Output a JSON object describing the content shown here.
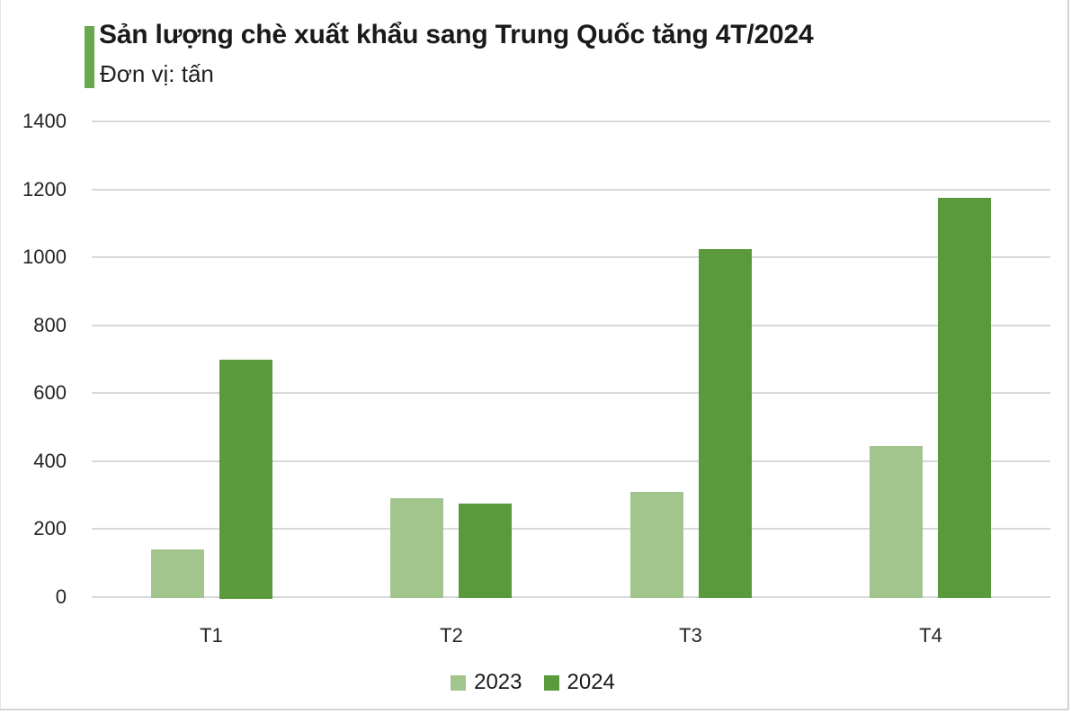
{
  "colors": {
    "accent_bar": "#6aa84f",
    "grid": "#d9d9d9",
    "frame_border": "#d4d4d4",
    "title_text": "#1a1a1a",
    "axis_text": "#262626",
    "series_2023": "#a2c58e",
    "series_2024": "#5a9a3c"
  },
  "chart_data": {
    "type": "bar",
    "title": "Sản lượng chè xuất khẩu sang Trung Quốc tăng 4T/2024",
    "subtitle": "Đơn vị: tấn",
    "categories": [
      "T1",
      "T2",
      "T3",
      "T4"
    ],
    "series": [
      {
        "name": "2023",
        "color": "#a2c58e",
        "values": [
          140,
          290,
          310,
          445
        ]
      },
      {
        "name": "2024",
        "color": "#5a9a3c",
        "values": [
          700,
          275,
          1025,
          1175
        ]
      }
    ],
    "xlabel": "",
    "ylabel": "",
    "ylim": [
      0,
      1400
    ],
    "ytick_step": 200,
    "ytick_labels": [
      "0",
      "200",
      "400",
      "600",
      "800",
      "1000",
      "1200",
      "1400"
    ],
    "grid": true,
    "legend_position": "bottom",
    "legend_entries": [
      "2023",
      "2024"
    ]
  }
}
